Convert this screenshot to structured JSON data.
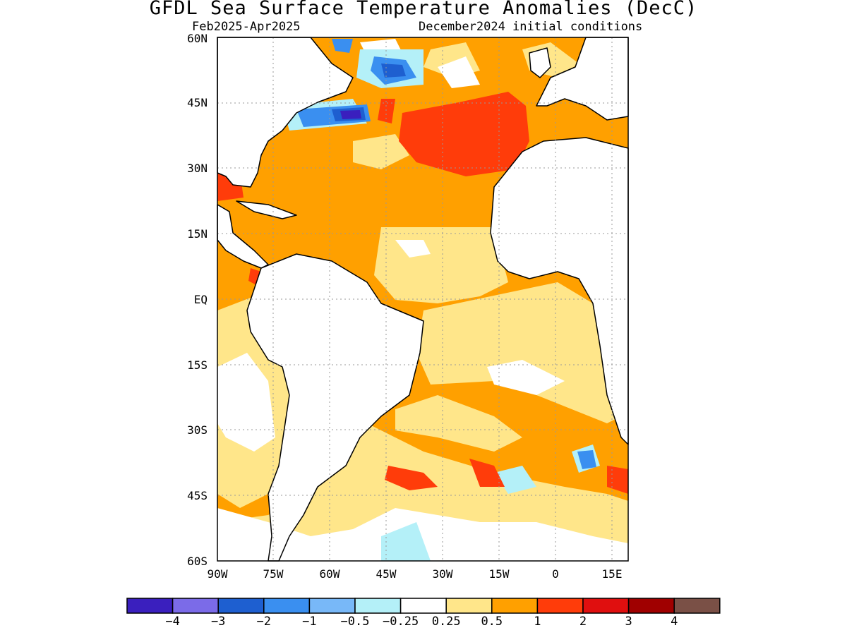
{
  "title": "GFDL Sea Surface Temperature Anomalies (DecC)",
  "subtitle_left": "Feb2025-Apr2025",
  "subtitle_right": "December2024 initial conditions",
  "map": {
    "lon_range": [
      -90,
      19
    ],
    "lat_range": [
      -60,
      60
    ],
    "grid": "dotted",
    "y_ticks": [
      "60N",
      "45N",
      "30N",
      "15N",
      "EQ",
      "15S",
      "30S",
      "45S",
      "60S"
    ],
    "x_ticks": [
      "90W",
      "75W",
      "60W",
      "45W",
      "30W",
      "15W",
      "0",
      "15E"
    ]
  },
  "colorbar": {
    "colors": [
      "#3a1fbe",
      "#7b6be8",
      "#1e5fd0",
      "#3a8ff0",
      "#78b8f8",
      "#b4f0f8",
      "#ffffff",
      "#ffe68a",
      "#ffa000",
      "#ff3c0a",
      "#e00f0f",
      "#a00000",
      "#7a5046"
    ],
    "labels": [
      "-4",
      "-3",
      "-2",
      "-1",
      "-0.5",
      "-0.25",
      "0.25",
      "0.5",
      "1",
      "2",
      "3",
      "4"
    ]
  },
  "colors": {
    "land": "#ffffff",
    "coast": "#000000",
    "grid": "#999999"
  }
}
